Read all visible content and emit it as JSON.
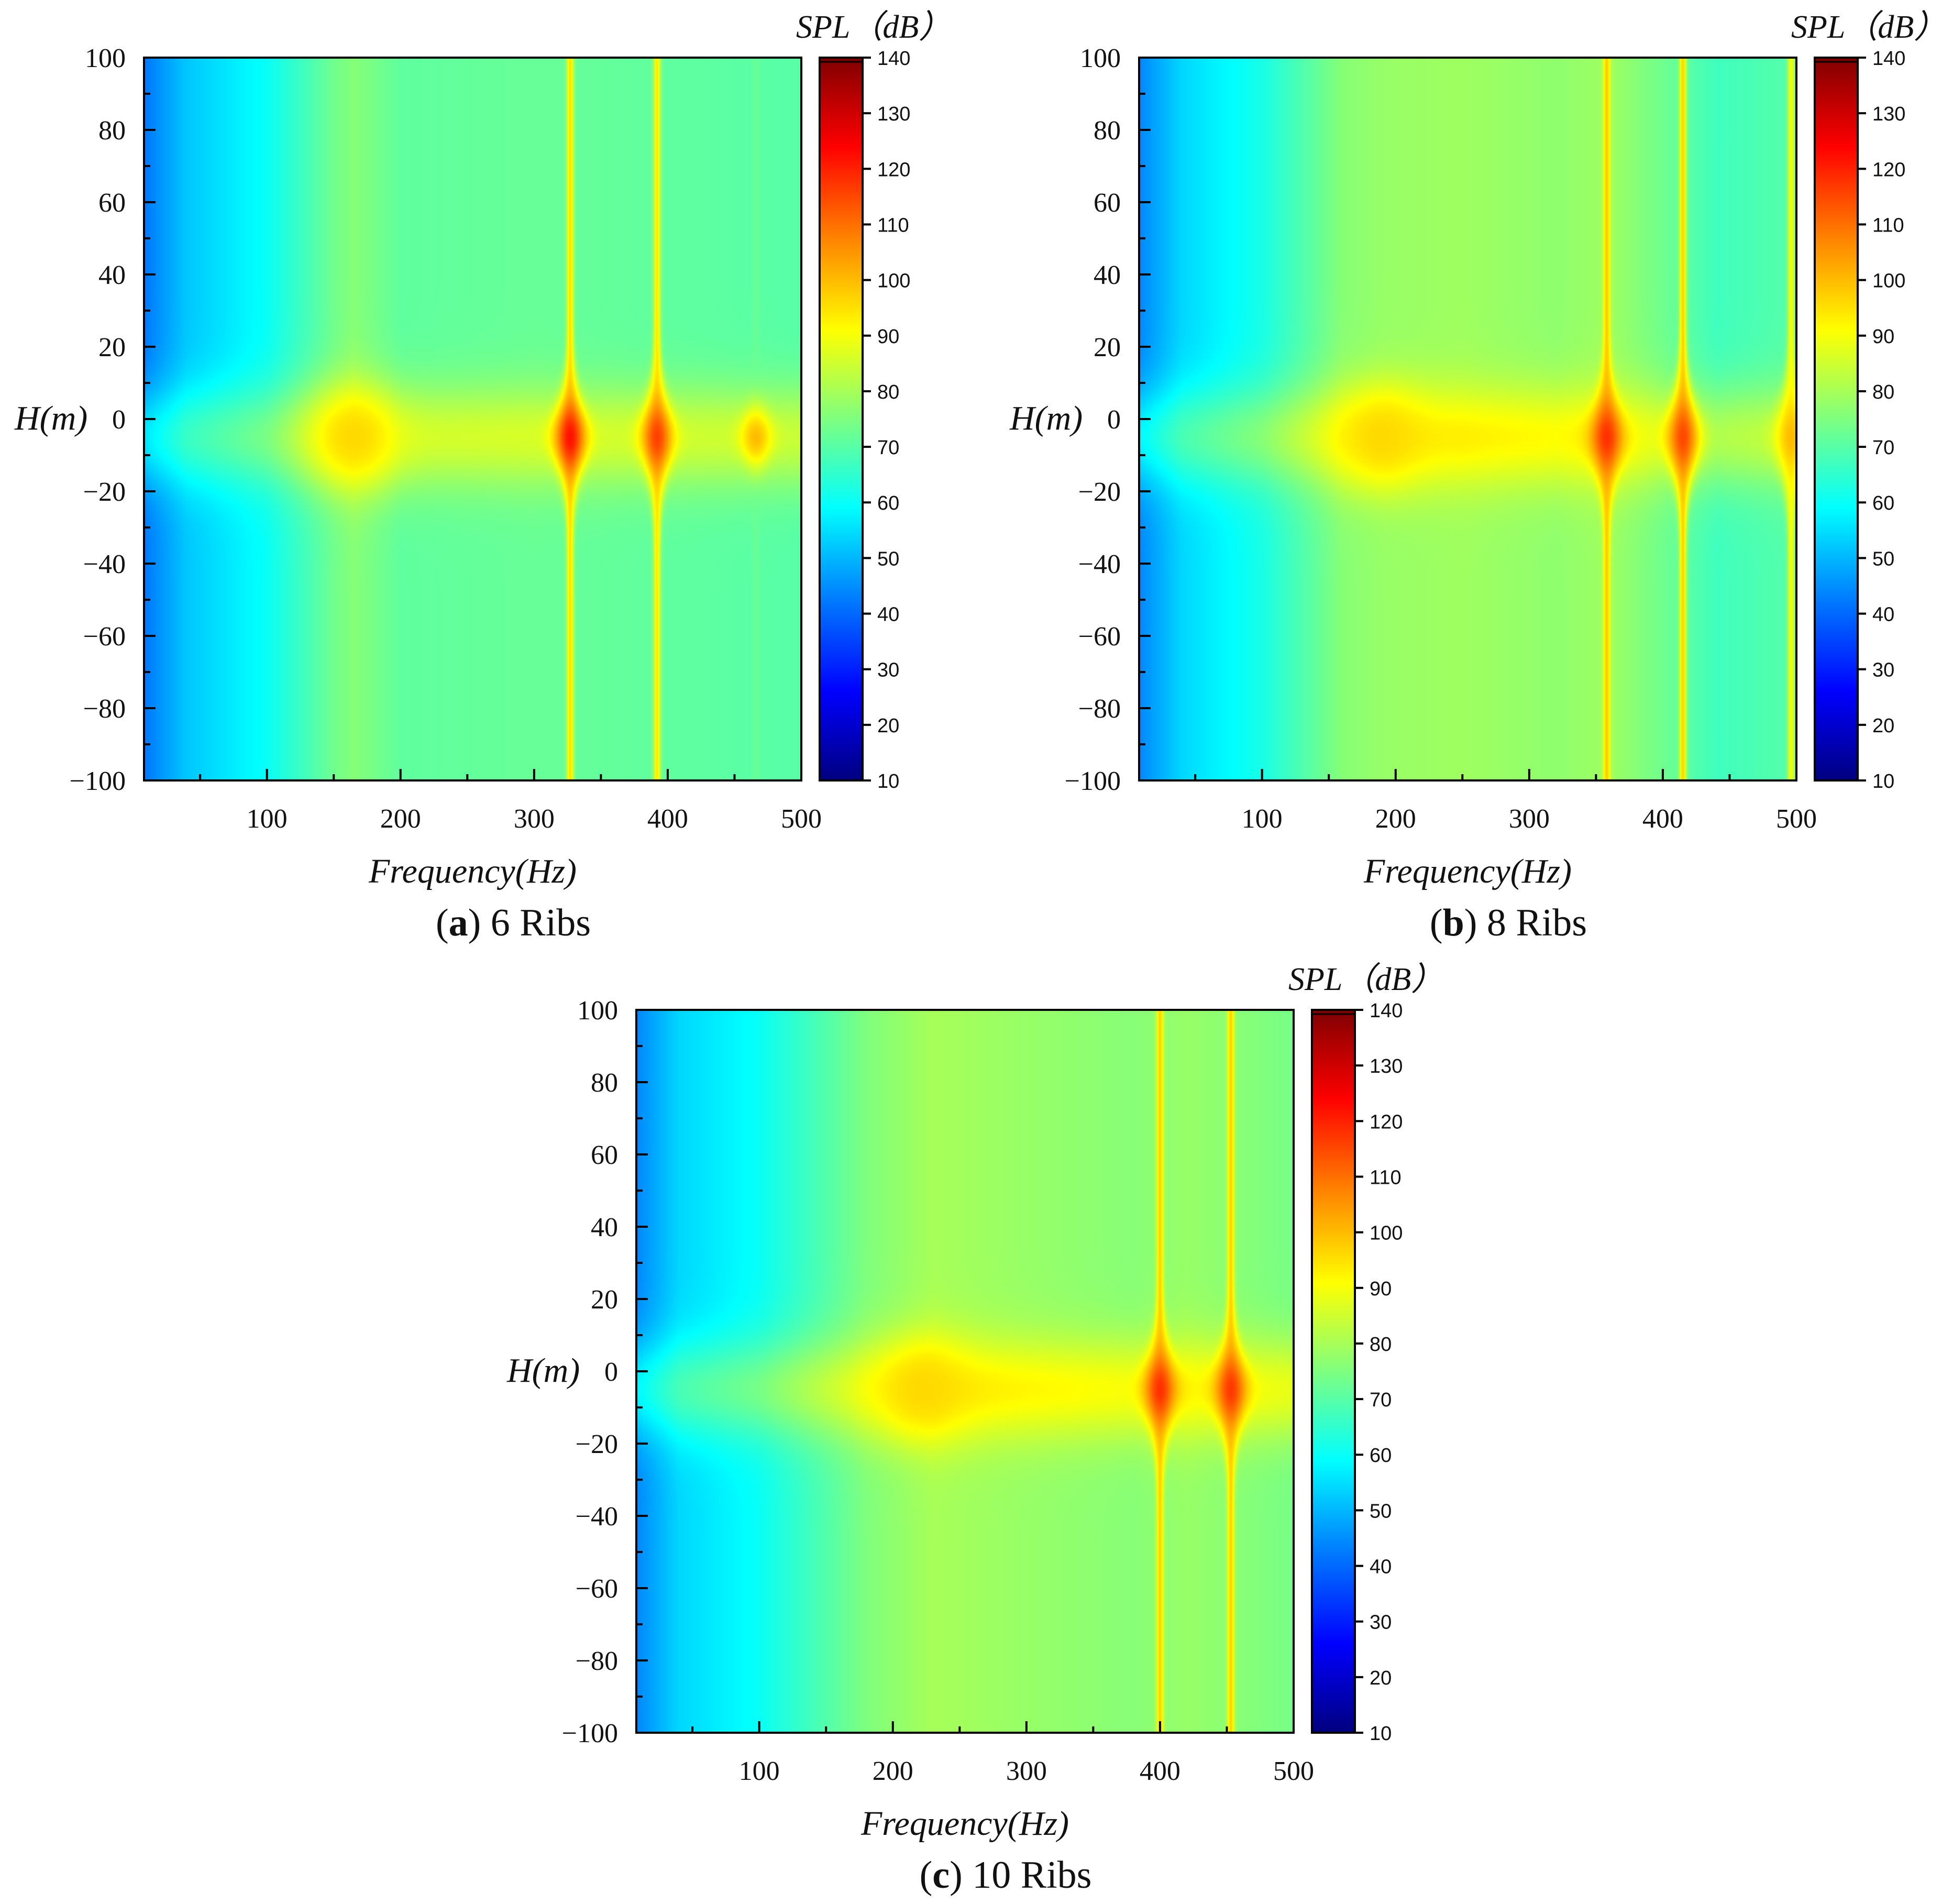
{
  "colorbar_stops": [
    {
      "v": 10,
      "c": "#00007f"
    },
    {
      "v": 26,
      "c": "#0000ff"
    },
    {
      "v": 43,
      "c": "#007fff"
    },
    {
      "v": 59,
      "c": "#00ffff"
    },
    {
      "v": 75,
      "c": "#7fff7f"
    },
    {
      "v": 91,
      "c": "#ffff00"
    },
    {
      "v": 108,
      "c": "#ff7f00"
    },
    {
      "v": 124,
      "c": "#ff0000"
    },
    {
      "v": 140,
      "c": "#7f0000"
    }
  ],
  "chart_data": [
    {
      "type": "heatmap",
      "caption_letter": "a",
      "caption_text": " 6 Ribs",
      "xlabel": "Frequency(Hz)",
      "ylabel": "H(m)",
      "colorbar_label": "SPL（dB）",
      "xlim": [
        8,
        500
      ],
      "ylim": [
        -100,
        100
      ],
      "x_ticks": [
        100,
        200,
        300,
        400,
        500
      ],
      "y_ticks": [
        100,
        80,
        60,
        40,
        20,
        0,
        -20,
        -40,
        -60,
        -80,
        -100
      ],
      "colorbar_range": [
        10,
        140
      ],
      "colorbar_ticks": [
        140,
        130,
        120,
        110,
        100,
        90,
        80,
        70,
        60,
        50,
        40,
        30,
        20,
        10
      ],
      "base_profile": [
        [
          8,
          42
        ],
        [
          40,
          52
        ],
        [
          100,
          60
        ],
        [
          150,
          73
        ],
        [
          165,
          76
        ],
        [
          200,
          71
        ],
        [
          300,
          72
        ],
        [
          500,
          70
        ]
      ],
      "band_center_H": -5,
      "band_boost": 14,
      "band_sigma_H": 14,
      "hotspot": {
        "f": 165,
        "H": -5,
        "level": 96
      },
      "resonances": [
        {
          "f": 327,
          "peak_dB": 122,
          "edge_dB": 95
        },
        {
          "f": 392,
          "peak_dB": 116,
          "edge_dB": 94
        },
        {
          "f": 466,
          "peak_dB": 100,
          "edge_dB": 72
        }
      ]
    },
    {
      "type": "heatmap",
      "caption_letter": "b",
      "caption_text": " 8 Ribs",
      "xlabel": "Frequency(Hz)",
      "ylabel": "H(m)",
      "colorbar_label": "SPL（dB）",
      "xlim": [
        8,
        500
      ],
      "ylim": [
        -100,
        100
      ],
      "x_ticks": [
        100,
        200,
        300,
        400,
        500
      ],
      "y_ticks": [
        100,
        80,
        60,
        40,
        20,
        0,
        -20,
        -40,
        -60,
        -80,
        -100
      ],
      "colorbar_range": [
        10,
        140
      ],
      "colorbar_ticks": [
        140,
        130,
        120,
        110,
        100,
        90,
        80,
        70,
        60,
        50,
        40,
        30,
        20,
        10
      ],
      "base_profile": [
        [
          8,
          44
        ],
        [
          40,
          54
        ],
        [
          100,
          62
        ],
        [
          160,
          76
        ],
        [
          190,
          78
        ],
        [
          250,
          79
        ],
        [
          320,
          77
        ],
        [
          360,
          79
        ],
        [
          440,
          67
        ],
        [
          500,
          70
        ]
      ],
      "band_center_H": -5,
      "band_boost": 14,
      "band_sigma_H": 14,
      "hotspot": {
        "f": 190,
        "H": -5,
        "level": 96
      },
      "resonances": [
        {
          "f": 358,
          "peak_dB": 118,
          "edge_dB": 98
        },
        {
          "f": 415,
          "peak_dB": 115,
          "edge_dB": 97
        },
        {
          "f": 496,
          "peak_dB": 100,
          "edge_dB": 90
        }
      ]
    },
    {
      "type": "heatmap",
      "caption_letter": "c",
      "caption_text": " 10 Ribs",
      "xlabel": "Frequency(Hz)",
      "ylabel": "H(m)",
      "colorbar_label": "SPL（dB）",
      "xlim": [
        8,
        500
      ],
      "ylim": [
        -100,
        100
      ],
      "x_ticks": [
        100,
        200,
        300,
        400,
        500
      ],
      "y_ticks": [
        100,
        80,
        60,
        40,
        20,
        0,
        -20,
        -40,
        -60,
        -80,
        -100
      ],
      "colorbar_range": [
        10,
        140
      ],
      "colorbar_ticks": [
        140,
        130,
        120,
        110,
        100,
        90,
        80,
        70,
        60,
        50,
        40,
        30,
        20,
        10
      ],
      "base_profile": [
        [
          8,
          44
        ],
        [
          40,
          54
        ],
        [
          100,
          60
        ],
        [
          180,
          75
        ],
        [
          230,
          80
        ],
        [
          300,
          78
        ],
        [
          380,
          76
        ],
        [
          420,
          78
        ],
        [
          500,
          74
        ]
      ],
      "band_center_H": -5,
      "band_boost": 14,
      "band_sigma_H": 14,
      "hotspot": {
        "f": 222,
        "H": -5,
        "level": 96
      },
      "resonances": [
        {
          "f": 400,
          "peak_dB": 118,
          "edge_dB": 97
        },
        {
          "f": 453,
          "peak_dB": 117,
          "edge_dB": 97
        }
      ]
    }
  ]
}
